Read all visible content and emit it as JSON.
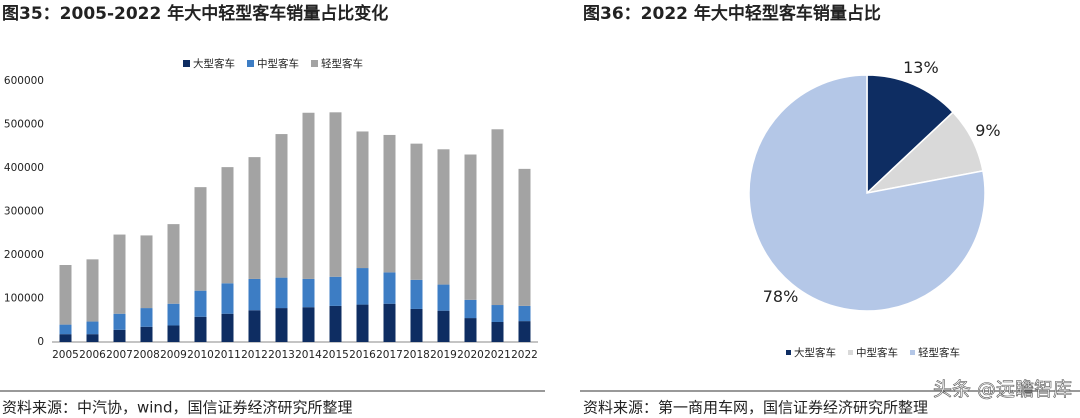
{
  "chart_data": [
    {
      "type": "bar",
      "stacked": true,
      "title": "图35：2005-2022 年大中轻型客车销量占比变化",
      "categories": [
        "2005",
        "2006",
        "2007",
        "2008",
        "2009",
        "2010",
        "2011",
        "2012",
        "2013",
        "2014",
        "2015",
        "2016",
        "2017",
        "2018",
        "2019",
        "2020",
        "2021",
        "2022"
      ],
      "series": [
        {
          "name": "大型客车",
          "color": "#0e2d62",
          "values": [
            18000,
            18000,
            28000,
            35000,
            38000,
            58000,
            65000,
            73000,
            78000,
            80000,
            83000,
            86000,
            88000,
            76000,
            72000,
            55000,
            46000,
            48000
          ]
        },
        {
          "name": "中型客车",
          "color": "#3d7dc4",
          "values": [
            22000,
            29000,
            37000,
            43000,
            50000,
            60000,
            70000,
            72000,
            70000,
            65000,
            67000,
            84000,
            72000,
            67000,
            60000,
            42000,
            39000,
            35000
          ]
        },
        {
          "name": "轻型客车",
          "color": "#a3a3a3",
          "values": [
            137000,
            143000,
            182000,
            167000,
            183000,
            238000,
            267000,
            280000,
            330000,
            382000,
            378000,
            314000,
            316000,
            313000,
            311000,
            334000,
            404000,
            315000
          ]
        }
      ],
      "ylim": [
        0,
        600000
      ],
      "yticks": [
        0,
        100000,
        200000,
        300000,
        400000,
        500000,
        600000
      ],
      "grid": false,
      "legend": "top"
    },
    {
      "type": "pie",
      "title": "图36：2022 年大中轻型客车销量占比",
      "categories": [
        "大型客车",
        "中型客车",
        "轻型客车"
      ],
      "values": [
        13,
        9,
        78
      ],
      "value_labels": [
        "13%",
        "9%",
        "78%"
      ],
      "colors": [
        "#0e2d62",
        "#d9d9d9",
        "#b4c7e7"
      ],
      "legend": "bottom"
    }
  ],
  "sources": [
    "资料来源：中汽协，wind，国信证券经济研究所整理",
    "资料来源：第一商用车网，国信证券经济研究所整理"
  ],
  "watermark": "头条 @远瞻智库"
}
